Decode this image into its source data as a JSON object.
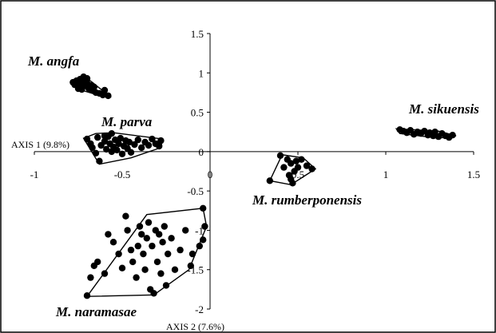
{
  "chart_data": {
    "type": "scatter",
    "title": "",
    "xlabel": "AXIS 1 (9.8%)",
    "ylabel": "AXIS 2 (7.6%)",
    "xlim": [
      -1,
      1.5
    ],
    "ylim": [
      -2,
      1.5
    ],
    "x_ticks": [
      "-1",
      "-0.5",
      "0",
      "0.5",
      "1",
      "1.5"
    ],
    "y_ticks": [
      "1.5",
      "1",
      "0.5",
      "0",
      "-0.5",
      "-1",
      "-1.5",
      "-2"
    ],
    "grid": false,
    "groups": [
      {
        "name": "M. angfa",
        "points": [
          [
            -0.78,
            0.88
          ],
          [
            -0.77,
            0.85
          ],
          [
            -0.76,
            0.9
          ],
          [
            -0.75,
            0.87
          ],
          [
            -0.74,
            0.92
          ],
          [
            -0.73,
            0.86
          ],
          [
            -0.72,
            0.83
          ],
          [
            -0.71,
            0.9
          ],
          [
            -0.7,
            0.87
          ],
          [
            -0.69,
            0.8
          ],
          [
            -0.7,
            0.93
          ],
          [
            -0.68,
            0.84
          ],
          [
            -0.67,
            0.78
          ],
          [
            -0.66,
            0.82
          ],
          [
            -0.65,
            0.75
          ],
          [
            -0.63,
            0.74
          ],
          [
            -0.61,
            0.72
          ],
          [
            -0.6,
            0.78
          ],
          [
            -0.58,
            0.71
          ],
          [
            -0.75,
            0.8
          ],
          [
            -0.73,
            0.79
          ],
          [
            -0.72,
            0.95
          ]
        ],
        "hull": [
          [
            -0.78,
            0.86
          ],
          [
            -0.72,
            0.96
          ],
          [
            -0.67,
            0.88
          ],
          [
            -0.57,
            0.7
          ],
          [
            -0.64,
            0.72
          ],
          [
            -0.73,
            0.78
          ]
        ]
      },
      {
        "name": "M. parva",
        "points": [
          [
            -0.7,
            0.16
          ],
          [
            -0.68,
            0.1
          ],
          [
            -0.67,
            0.05
          ],
          [
            -0.65,
            -0.02
          ],
          [
            -0.63,
            -0.12
          ],
          [
            -0.64,
            0.18
          ],
          [
            -0.62,
            0.08
          ],
          [
            -0.6,
            0.13
          ],
          [
            -0.59,
            0.03
          ],
          [
            -0.58,
            0.19
          ],
          [
            -0.57,
            0.1
          ],
          [
            -0.56,
            0.0
          ],
          [
            -0.55,
            0.06
          ],
          [
            -0.54,
            0.15
          ],
          [
            -0.53,
            0.02
          ],
          [
            -0.52,
            0.1
          ],
          [
            -0.51,
            0.17
          ],
          [
            -0.5,
            -0.03
          ],
          [
            -0.49,
            0.07
          ],
          [
            -0.48,
            0.14
          ],
          [
            -0.47,
            0.04
          ],
          [
            -0.46,
            0.12
          ],
          [
            -0.45,
            -0.01
          ],
          [
            -0.43,
            0.09
          ],
          [
            -0.41,
            0.15
          ],
          [
            -0.39,
            0.05
          ],
          [
            -0.37,
            0.12
          ],
          [
            -0.35,
            0.08
          ],
          [
            -0.33,
            0.16
          ],
          [
            -0.31,
            0.1
          ],
          [
            -0.29,
            0.07
          ],
          [
            -0.28,
            0.14
          ],
          [
            -0.56,
            0.23
          ],
          [
            -0.6,
            0.2
          ]
        ],
        "hull": [
          [
            -0.72,
            0.17
          ],
          [
            -0.65,
            0.23
          ],
          [
            -0.55,
            0.24
          ],
          [
            -0.27,
            0.16
          ],
          [
            -0.28,
            0.05
          ],
          [
            -0.45,
            -0.08
          ],
          [
            -0.63,
            -0.16
          ]
        ]
      },
      {
        "name": "M. sikuensis",
        "points": [
          [
            1.08,
            0.28
          ],
          [
            1.1,
            0.26
          ],
          [
            1.12,
            0.24
          ],
          [
            1.14,
            0.27
          ],
          [
            1.16,
            0.22
          ],
          [
            1.18,
            0.25
          ],
          [
            1.2,
            0.23
          ],
          [
            1.22,
            0.26
          ],
          [
            1.24,
            0.21
          ],
          [
            1.25,
            0.24
          ],
          [
            1.27,
            0.2
          ],
          [
            1.28,
            0.25
          ],
          [
            1.3,
            0.19
          ],
          [
            1.32,
            0.23
          ],
          [
            1.34,
            0.2
          ],
          [
            1.36,
            0.18
          ],
          [
            1.38,
            0.21
          ]
        ],
        "hull": [
          [
            1.06,
            0.29
          ],
          [
            1.3,
            0.26
          ],
          [
            1.4,
            0.2
          ],
          [
            1.3,
            0.17
          ],
          [
            1.08,
            0.23
          ]
        ]
      },
      {
        "name": "M. rumberponensis",
        "points": [
          [
            0.34,
            -0.37
          ],
          [
            0.4,
            -0.05
          ],
          [
            0.42,
            -0.2
          ],
          [
            0.44,
            -0.1
          ],
          [
            0.45,
            -0.3
          ],
          [
            0.46,
            -0.15
          ],
          [
            0.47,
            -0.4
          ],
          [
            0.48,
            -0.25
          ],
          [
            0.49,
            -0.12
          ],
          [
            0.5,
            -0.2
          ],
          [
            0.52,
            -0.1
          ],
          [
            0.55,
            -0.18
          ],
          [
            0.58,
            -0.22
          ],
          [
            0.46,
            -0.35
          ]
        ],
        "hull": [
          [
            0.34,
            -0.37
          ],
          [
            0.41,
            -0.04
          ],
          [
            0.53,
            -0.08
          ],
          [
            0.6,
            -0.22
          ],
          [
            0.46,
            -0.42
          ]
        ]
      },
      {
        "name": "M. naramasae",
        "points": [
          [
            -0.7,
            -1.83
          ],
          [
            -0.68,
            -1.6
          ],
          [
            -0.66,
            -1.45
          ],
          [
            -0.64,
            -1.4
          ],
          [
            -0.6,
            -1.55
          ],
          [
            -0.58,
            -1.05
          ],
          [
            -0.55,
            -1.15
          ],
          [
            -0.52,
            -1.3
          ],
          [
            -0.5,
            -1.48
          ],
          [
            -0.48,
            -0.82
          ],
          [
            -0.47,
            -1.0
          ],
          [
            -0.45,
            -1.25
          ],
          [
            -0.44,
            -1.4
          ],
          [
            -0.42,
            -1.6
          ],
          [
            -0.41,
            -1.2
          ],
          [
            -0.4,
            -0.95
          ],
          [
            -0.39,
            -1.05
          ],
          [
            -0.38,
            -1.3
          ],
          [
            -0.37,
            -1.5
          ],
          [
            -0.36,
            -1.1
          ],
          [
            -0.35,
            -0.9
          ],
          [
            -0.34,
            -1.75
          ],
          [
            -0.33,
            -1.2
          ],
          [
            -0.32,
            -1.8
          ],
          [
            -0.31,
            -1.0
          ],
          [
            -0.3,
            -1.4
          ],
          [
            -0.29,
            -1.05
          ],
          [
            -0.28,
            -1.55
          ],
          [
            -0.27,
            -1.15
          ],
          [
            -0.26,
            -0.95
          ],
          [
            -0.25,
            -1.7
          ],
          [
            -0.24,
            -1.3
          ],
          [
            -0.22,
            -1.1
          ],
          [
            -0.2,
            -1.5
          ],
          [
            -0.17,
            -1.25
          ],
          [
            -0.14,
            -1.0
          ],
          [
            -0.11,
            -1.45
          ],
          [
            -0.04,
            -1.12
          ],
          [
            -0.03,
            -0.95
          ],
          [
            -0.04,
            -0.72
          ],
          [
            -0.1,
            -1.3
          ],
          [
            -0.06,
            -1.2
          ]
        ],
        "hull": [
          [
            -0.7,
            -1.84
          ],
          [
            -0.36,
            -0.8
          ],
          [
            -0.04,
            -0.72
          ],
          [
            -0.02,
            -0.95
          ],
          [
            -0.12,
            -1.5
          ],
          [
            -0.32,
            -1.82
          ]
        ]
      }
    ]
  }
}
